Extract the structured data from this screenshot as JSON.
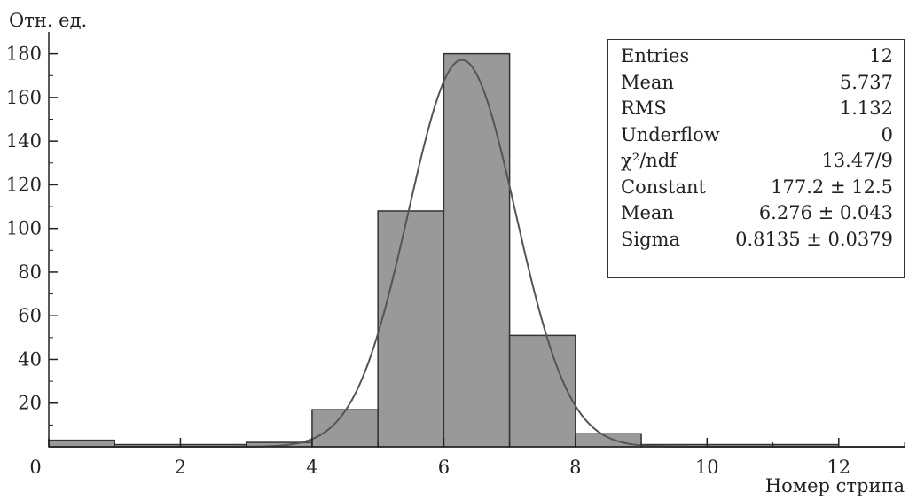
{
  "chart_data": {
    "type": "histogram",
    "ylabel": "Отн. ед.",
    "xlabel": "Номер стрипа",
    "xlim": [
      0,
      13
    ],
    "ylim": [
      0,
      190
    ],
    "x_ticks": [
      0,
      2,
      4,
      6,
      8,
      10,
      12
    ],
    "y_ticks": [
      20,
      40,
      60,
      80,
      100,
      120,
      140,
      160,
      180
    ],
    "y_tick_labels": [
      "20",
      "40",
      "60",
      "80",
      "100",
      "120",
      "140",
      "160",
      "180"
    ],
    "x_tick_labels": [
      "0",
      "2",
      "4",
      "6",
      "8",
      "10",
      "12"
    ],
    "origin_label": "0",
    "bins": [
      {
        "x0": 0,
        "x1": 1,
        "value": 3
      },
      {
        "x0": 1,
        "x1": 2,
        "value": 1
      },
      {
        "x0": 2,
        "x1": 3,
        "value": 1
      },
      {
        "x0": 3,
        "x1": 4,
        "value": 2
      },
      {
        "x0": 4,
        "x1": 5,
        "value": 17
      },
      {
        "x0": 5,
        "x1": 6,
        "value": 108
      },
      {
        "x0": 6,
        "x1": 7,
        "value": 180
      },
      {
        "x0": 7,
        "x1": 8,
        "value": 51
      },
      {
        "x0": 8,
        "x1": 9,
        "value": 6
      },
      {
        "x0": 9,
        "x1": 10,
        "value": 1
      },
      {
        "x0": 10,
        "x1": 11,
        "value": 1
      },
      {
        "x0": 11,
        "x1": 12,
        "value": 1
      }
    ],
    "fit": {
      "type": "gaussian",
      "constant": 177.2,
      "mean": 6.276,
      "sigma": 0.8135
    },
    "colors": {
      "bar_fill": "#999999",
      "bar_stroke": "#333333",
      "fit_line": "#555555"
    },
    "stats": [
      {
        "label": "Entries",
        "value": "12"
      },
      {
        "label": "Mean",
        "value": "5.737"
      },
      {
        "label": "RMS",
        "value": "1.132"
      },
      {
        "label": "Underflow",
        "value": "0"
      },
      {
        "label": "χ²/ndf",
        "value": "13.47/9"
      },
      {
        "label": "Constant",
        "value": "177.2 ± 12.5"
      },
      {
        "label": "Mean",
        "value": "6.276 ± 0.043"
      },
      {
        "label": "Sigma",
        "value": "0.8135 ± 0.0379"
      }
    ]
  }
}
